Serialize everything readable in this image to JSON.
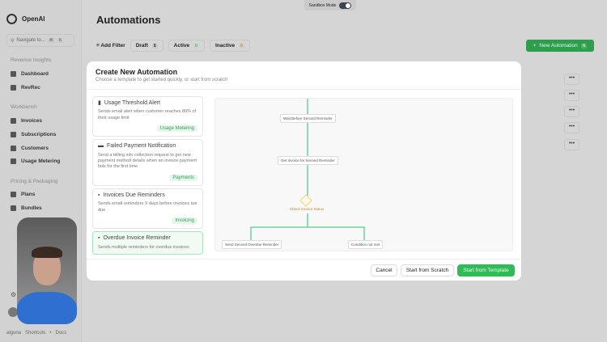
{
  "sandbox": {
    "label": "Sandbox Mode",
    "enabled": true
  },
  "sidebar": {
    "brand": "OpenAI",
    "search_placeholder": "Navigate to...",
    "shortcut": [
      "⌘",
      "K"
    ],
    "sections": [
      {
        "title": "Revenue Insights",
        "items": [
          "Dashboard",
          "RevRec"
        ]
      },
      {
        "title": "Workbench",
        "items": [
          "Invoices",
          "Subscriptions",
          "Customers",
          "Usage Metering"
        ]
      },
      {
        "title": "Pricing & Packaging",
        "items": [
          "Plans",
          "Bundles"
        ]
      }
    ],
    "footer": {
      "brand": "alguna",
      "shortcuts": "Shortcuts",
      "sep": "•",
      "docs": "Docs"
    }
  },
  "page": {
    "title": "Automations",
    "add_filter": "Add Filter",
    "filters": [
      {
        "label": "Draft",
        "count": "5"
      },
      {
        "label": "Active",
        "count": "0"
      },
      {
        "label": "Inactive",
        "count": "0"
      }
    ],
    "new_button": "New Automation",
    "new_shortcut": "N",
    "row_menu": "•••"
  },
  "modal": {
    "title": "Create New Automation",
    "subtitle": "Choose a template to get started quickly, or start from scratch",
    "templates": [
      {
        "title": "Usage Threshold Alert",
        "desc": "Sends email alert when customer reaches 80% of their usage limit",
        "tag": "Usage Metering",
        "icon": "bar-chart-icon"
      },
      {
        "title": "Failed Payment Notification",
        "desc": "Send a billing info collection request to get new payment method details when an invoice payment fails for the first time",
        "tag": "Payments",
        "icon": "credit-card-icon"
      },
      {
        "title": "Invoices Due Reminders",
        "desc": "Sends email reminders X days before invoices are due",
        "tag": "Invoicing",
        "icon": "invoice-icon"
      },
      {
        "title": "Overdue Invoice Reminder",
        "desc": "Sends multiple reminders for overdue invoices",
        "tag": "",
        "icon": "invoice-icon"
      }
    ],
    "flow": {
      "nodes": [
        "Wait Before Second Reminder",
        "Get Invoice for Second Reminder",
        "Check Invoice Status",
        "Send Second Overdue Reminder",
        "Condition not met"
      ],
      "accent": "#6fd3a0",
      "condition_color": "#e0b24a"
    },
    "buttons": {
      "cancel": "Cancel",
      "scratch": "Start from Scratch",
      "template": "Start from Template"
    }
  }
}
